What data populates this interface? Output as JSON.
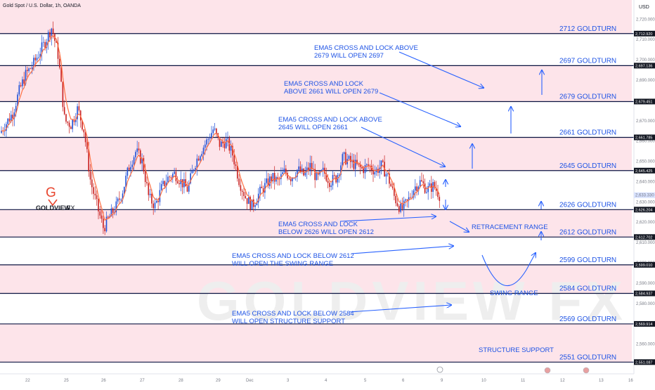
{
  "header": {
    "symbol_title": "Gold Spot / U.S. Dollar, 1h, OANDA",
    "currency": "USD"
  },
  "logo": {
    "letter": "G",
    "brand": "GOLDVIEW",
    "brand_suffix": "FX"
  },
  "watermark": "GOLDVIEW FX",
  "colors": {
    "band": "#fde4ea",
    "level_line": "#0b1340",
    "label_blue": "#1e53e5",
    "arrow_blue": "#2962ff",
    "candle_up": "#1e4fd6",
    "candle_down": "#c81e1e",
    "ema": "#ff7043",
    "price_tag_bg": "#131722",
    "current_price_bg": "#d8e2ff"
  },
  "chart_data": {
    "type": "candlestick",
    "ylim": [
      2546,
      2726
    ],
    "xlabels": [
      "22",
      "25",
      "26",
      "27",
      "28",
      "29",
      "Dec",
      "3",
      "4",
      "5",
      "6",
      "9",
      "10",
      "11",
      "12",
      "13",
      "16"
    ],
    "yticks": [
      2560,
      2570,
      2580,
      2590,
      2600,
      2610,
      2620,
      2630,
      2640,
      2650,
      2660,
      2670,
      2680,
      2690,
      2700,
      2710,
      2720
    ],
    "current_price": "2,633.330",
    "levels": [
      {
        "value": 2712.92,
        "tag": "2,712.920",
        "label": "2712 GOLDTURN"
      },
      {
        "value": 2697.136,
        "tag": "2,697.136",
        "label": "2697 GOLDTURN"
      },
      {
        "value": 2679.451,
        "tag": "2,679.451",
        "label": "2679 GOLDTURN"
      },
      {
        "value": 2661.785,
        "tag": "2,661.785",
        "label": "2661 GOLDTURN"
      },
      {
        "value": 2645.425,
        "tag": "2,645.425",
        "label": "2645 GOLDTURN"
      },
      {
        "value": 2626.204,
        "tag": "2,626.204",
        "label": "2626 GOLDTURN"
      },
      {
        "value": 2612.702,
        "tag": "2,612.702",
        "label": "2612 GOLDTURN"
      },
      {
        "value": 2599.01,
        "tag": "2,599.010",
        "label": "2599 GOLDTURN"
      },
      {
        "value": 2584.937,
        "tag": "2,584.937",
        "label": "2584 GOLDTURN"
      },
      {
        "value": 2569.914,
        "tag": "2,569.914",
        "label": "2569 GOLDTURN"
      },
      {
        "value": 2551.087,
        "tag": "2,551.087",
        "label": "2551 GOLDTURN"
      }
    ],
    "annotations": [
      {
        "lines": [
          "EMA5 CROSS AND LOCK ABOVE",
          "2679 WILL OPEN 2697"
        ]
      },
      {
        "lines": [
          "EMA5 CROSS AND LOCK",
          "ABOVE 2661 WILL OPEN 2679"
        ]
      },
      {
        "lines": [
          "EMA5 CROSS AND LOCK ABOVE",
          "2645 WILL OPEN 2661"
        ]
      },
      {
        "lines": [
          "EMA5 CROSS AND LOCK",
          "BELOW 2626 WILL OPEN 2612"
        ]
      },
      {
        "lines": [
          "EMA5 CROSS AND LOCK BELOW 2612",
          "WILL OPEN THE SWING RANGE"
        ]
      },
      {
        "lines": [
          "EMA5 CROSS AND LOCK BELOW 2584",
          "WILL OPEN STRUCTURE SUPPORT"
        ]
      },
      {
        "lines": [
          "RETRACEMENT RANGE"
        ]
      },
      {
        "lines": [
          "SWING RANGE"
        ]
      },
      {
        "lines": [
          "STRUCTURE SUPPORT"
        ]
      }
    ],
    "price_path": [
      [
        0,
        2664
      ],
      [
        1,
        2669
      ],
      [
        2,
        2674
      ],
      [
        3,
        2685
      ],
      [
        4,
        2693
      ],
      [
        5,
        2697
      ],
      [
        6,
        2703
      ],
      [
        7,
        2709
      ],
      [
        8,
        2716
      ],
      [
        9,
        2702
      ],
      [
        10,
        2670
      ],
      [
        11,
        2668
      ],
      [
        12,
        2676
      ],
      [
        13,
        2665
      ],
      [
        14,
        2640
      ],
      [
        15,
        2628
      ],
      [
        16,
        2617
      ],
      [
        17,
        2623
      ],
      [
        18,
        2628
      ],
      [
        19,
        2636
      ],
      [
        20,
        2648
      ],
      [
        21,
        2655
      ],
      [
        22,
        2650
      ],
      [
        23,
        2632
      ],
      [
        24,
        2628
      ],
      [
        25,
        2637
      ],
      [
        26,
        2642
      ],
      [
        27,
        2644
      ],
      [
        28,
        2640
      ],
      [
        29,
        2636
      ],
      [
        30,
        2648
      ],
      [
        31,
        2655
      ],
      [
        32,
        2660
      ],
      [
        33,
        2666
      ],
      [
        34,
        2658
      ],
      [
        35,
        2660
      ],
      [
        36,
        2653
      ],
      [
        37,
        2640
      ],
      [
        38,
        2632
      ],
      [
        39,
        2628
      ],
      [
        40,
        2634
      ],
      [
        41,
        2638
      ],
      [
        42,
        2642
      ],
      [
        43,
        2640
      ],
      [
        44,
        2645
      ],
      [
        45,
        2642
      ],
      [
        46,
        2646
      ],
      [
        47,
        2643
      ],
      [
        48,
        2648
      ],
      [
        49,
        2641
      ],
      [
        50,
        2645
      ],
      [
        51,
        2640
      ],
      [
        52,
        2642
      ],
      [
        53,
        2652
      ],
      [
        54,
        2650
      ],
      [
        55,
        2648
      ],
      [
        56,
        2646
      ],
      [
        57,
        2648
      ],
      [
        58,
        2645
      ],
      [
        59,
        2648
      ],
      [
        60,
        2642
      ],
      [
        61,
        2632
      ],
      [
        62,
        2626
      ],
      [
        63,
        2630
      ],
      [
        64,
        2637
      ],
      [
        65,
        2640
      ],
      [
        66,
        2636
      ],
      [
        67,
        2638
      ],
      [
        68,
        2633
      ]
    ]
  }
}
